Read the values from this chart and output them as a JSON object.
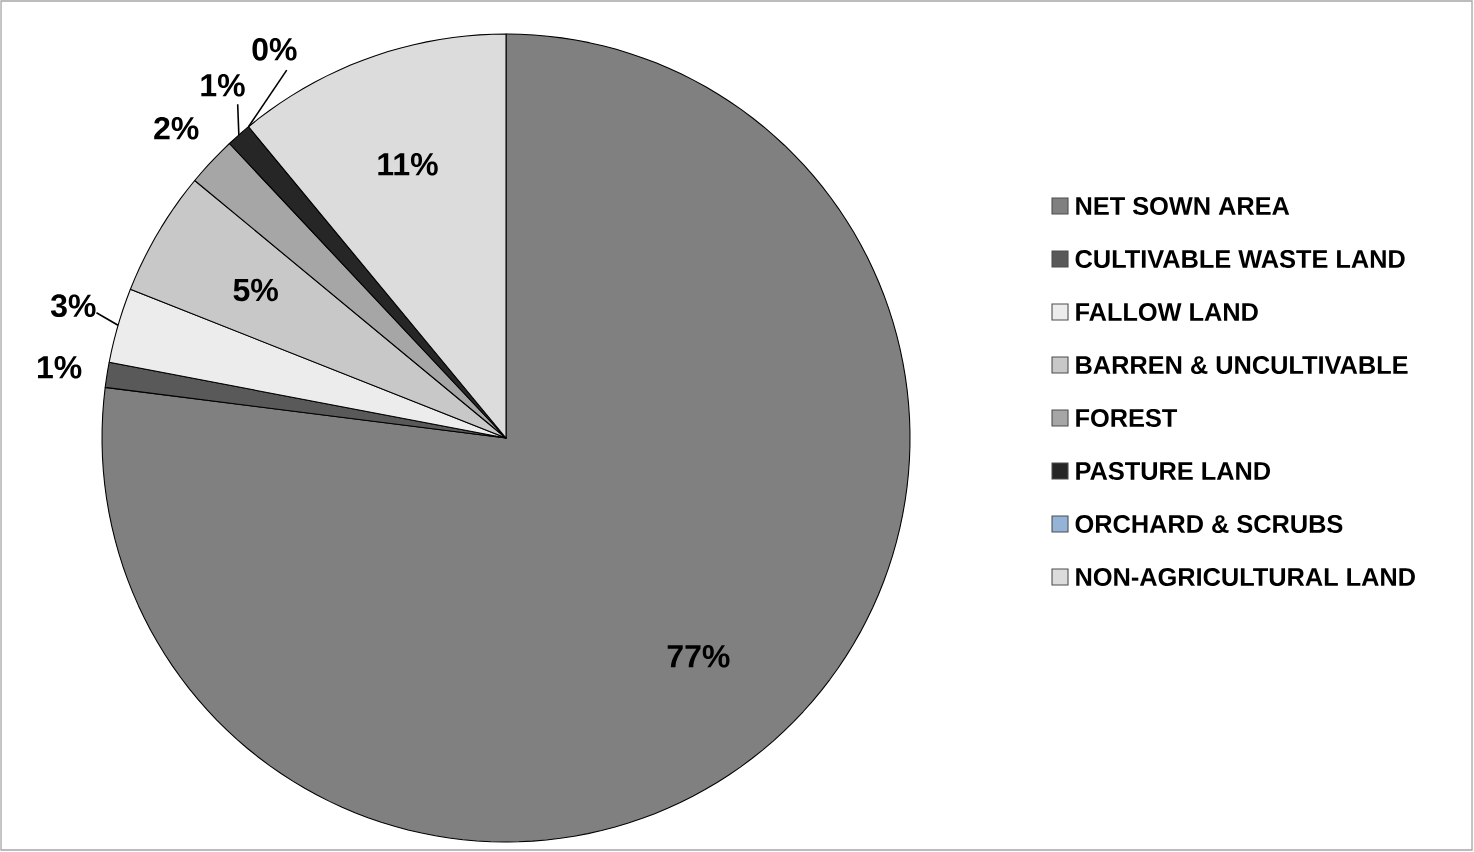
{
  "chart_data": {
    "type": "pie",
    "legend": "right",
    "categories": [
      "NET SOWN AREA",
      "CULTIVABLE WASTE LAND",
      "FALLOW LAND",
      "BARREN & UNCULTIVABLE",
      "FOREST",
      "PASTURE LAND",
      "ORCHARD & SCRUBS",
      "NON-AGRICULTURAL LAND"
    ],
    "values": [
      77,
      1,
      3,
      5,
      2,
      1,
      0,
      11
    ],
    "value_labels": [
      "77%",
      "1%",
      "3%",
      "5%",
      "2%",
      "1%",
      "0%",
      "11%"
    ],
    "colors": [
      "#808080",
      "#595959",
      "#ececec",
      "#c8c8c8",
      "#a6a6a6",
      "#262626",
      "#95b3d7",
      "#dcdcdc"
    ]
  }
}
